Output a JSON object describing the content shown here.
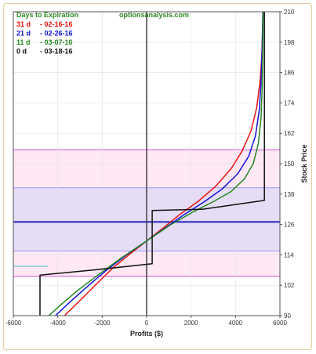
{
  "chart_data": {
    "type": "line",
    "watermark": "optionsanalysis.com",
    "legend_title": "Days to Expiration",
    "legend_title_color": "#2e8b22",
    "legend_placement": "top-left",
    "xlabel": "Profits ($)",
    "ylabel": "Stock Price",
    "xlim": [
      -6000,
      6000
    ],
    "ylim": [
      90,
      210
    ],
    "xticks": [
      "-6000",
      "-4000",
      "-2000",
      "0",
      "2000",
      "4000",
      "6000"
    ],
    "xtick_values": [
      -6000,
      -4000,
      -2000,
      0,
      2000,
      4000,
      6000
    ],
    "yticks": [
      "90",
      "102",
      "114",
      "126",
      "138",
      "150",
      "162",
      "174",
      "186",
      "198",
      "210"
    ],
    "ytick_values": [
      90,
      102,
      114,
      126,
      138,
      150,
      162,
      174,
      186,
      198,
      210
    ],
    "bands": [
      {
        "from": 105.5,
        "to": 155.5,
        "color": "#fde8f4",
        "border": "#cc55cc"
      },
      {
        "from": 115.5,
        "to": 140.5,
        "color": "#e6dcf6",
        "border": "#9999ee"
      }
    ],
    "hlines": [
      {
        "y": 127,
        "color": "#2222bb",
        "width": 2
      },
      {
        "y": 109.5,
        "color": "#88ccdd",
        "width": 1.5,
        "x_to": -4450
      }
    ],
    "vlines": [
      {
        "x": 0,
        "color": "#444444",
        "width": 1.5
      }
    ],
    "series": [
      {
        "name": "31 d",
        "date": "- 02-16-16",
        "color": "#ee1111",
        "points": [
          [
            -3700,
            90
          ],
          [
            -3000,
            96
          ],
          [
            -2200,
            103
          ],
          [
            -1500,
            109
          ],
          [
            -800,
            114
          ],
          [
            0,
            119.5
          ],
          [
            800,
            125
          ],
          [
            1500,
            130
          ],
          [
            2300,
            135
          ],
          [
            3100,
            141
          ],
          [
            3800,
            148
          ],
          [
            4300,
            155
          ],
          [
            4700,
            163
          ],
          [
            4950,
            172
          ],
          [
            5100,
            182
          ],
          [
            5180,
            192
          ],
          [
            5220,
            202
          ],
          [
            5240,
            210
          ]
        ]
      },
      {
        "name": "21 d",
        "date": "- 02-26-16",
        "color": "#1111dd",
        "points": [
          [
            -4100,
            90
          ],
          [
            -3500,
            95
          ],
          [
            -2600,
            102
          ],
          [
            -1800,
            108
          ],
          [
            -900,
            114
          ],
          [
            0,
            119.5
          ],
          [
            900,
            125
          ],
          [
            1700,
            130
          ],
          [
            2600,
            135
          ],
          [
            3400,
            140
          ],
          [
            4100,
            146
          ],
          [
            4600,
            153
          ],
          [
            4900,
            161
          ],
          [
            5070,
            171
          ],
          [
            5150,
            182
          ],
          [
            5200,
            195
          ],
          [
            5230,
            210
          ]
        ]
      },
      {
        "name": "11 d",
        "date": "- 03-07-16",
        "color": "#228822",
        "points": [
          [
            -4400,
            90
          ],
          [
            -3900,
            94
          ],
          [
            -3100,
            100
          ],
          [
            -2200,
            106
          ],
          [
            -1100,
            113
          ],
          [
            0,
            119.5
          ],
          [
            1100,
            126
          ],
          [
            2100,
            131
          ],
          [
            3000,
            135
          ],
          [
            3800,
            139
          ],
          [
            4400,
            144
          ],
          [
            4800,
            150
          ],
          [
            5030,
            158
          ],
          [
            5150,
            168
          ],
          [
            5200,
            180
          ],
          [
            5225,
            195
          ],
          [
            5240,
            210
          ]
        ]
      },
      {
        "name": "0 d",
        "date": "- 03-18-16",
        "color": "#111111",
        "points": [
          [
            -4800,
            90
          ],
          [
            -4800,
            106
          ],
          [
            -2400,
            108
          ],
          [
            250,
            110.5
          ],
          [
            250,
            124
          ],
          [
            250,
            131.5
          ],
          [
            2500,
            132
          ],
          [
            5300,
            135.5
          ],
          [
            5300,
            210
          ]
        ]
      }
    ]
  }
}
